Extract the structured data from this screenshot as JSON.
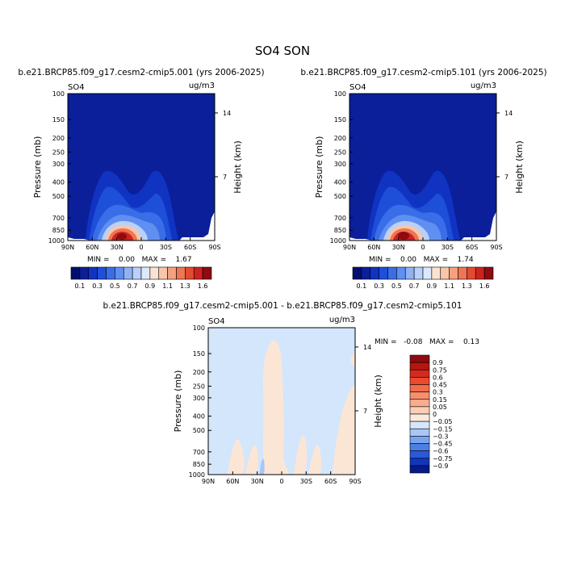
{
  "main_title": "SO4 SON",
  "colors": {
    "background_dark": "#0a1f99",
    "diff_background": "#d3e6fb",
    "diff_positive": "#fbe6d6",
    "diff_negative": "#a8c6f4"
  },
  "chart_data": [
    {
      "type": "heatmap",
      "title": "b.e21.BRCP85.f09_g17.cesm2-cmip5.001 (yrs 2006-2025)",
      "left_label": "SO4",
      "right_label": "ug/m3",
      "ylabel": "Pressure (mb)",
      "ylabel_right": "Height (km)",
      "y_ticks": [
        "100",
        "150",
        "200",
        "250",
        "300",
        "400",
        "500",
        "700",
        "850",
        "1000"
      ],
      "y_right_ticks": [
        "14",
        "7"
      ],
      "x_ticks": [
        "90N",
        "60N",
        "30N",
        "0",
        "30S",
        "60S",
        "90S"
      ],
      "stats_text": "MIN =    0.00   MAX =    1.67",
      "min": 0.0,
      "max": 1.67
    },
    {
      "type": "heatmap",
      "title": "b.e21.BRCP85.f09_g17.cesm2-cmip5.101 (yrs 2006-2025)",
      "left_label": "SO4",
      "right_label": "ug/m3",
      "ylabel": "Pressure (mb)",
      "ylabel_right": "Height (km)",
      "y_ticks": [
        "100",
        "150",
        "200",
        "250",
        "300",
        "400",
        "500",
        "700",
        "850",
        "1000"
      ],
      "y_right_ticks": [
        "14",
        "7"
      ],
      "x_ticks": [
        "90N",
        "60N",
        "30N",
        "0",
        "30S",
        "60S",
        "90S"
      ],
      "stats_text": "MIN =    0.00   MAX =    1.74",
      "min": 0.0,
      "max": 1.74
    },
    {
      "type": "heatmap",
      "title": "b.e21.BRCP85.f09_g17.cesm2-cmip5.001 - b.e21.BRCP85.f09_g17.cesm2-cmip5.101",
      "left_label": "SO4",
      "right_label": "ug/m3",
      "ylabel": "Pressure (mb)",
      "ylabel_right": "Height (km)",
      "y_ticks": [
        "100",
        "150",
        "200",
        "250",
        "300",
        "400",
        "500",
        "700",
        "850",
        "1000"
      ],
      "y_right_ticks": [
        "14",
        "7"
      ],
      "x_ticks": [
        "90N",
        "60N",
        "30N",
        "0",
        "30S",
        "60S",
        "90S"
      ],
      "stats_text": "MIN =   -0.08   MAX =    0.13",
      "min": -0.08,
      "max": 0.13
    }
  ],
  "colorbar_main": {
    "labels": [
      "0.1",
      "0.3",
      "0.5",
      "0.7",
      "0.9",
      "1.1",
      "1.3",
      "1.6"
    ],
    "colors": [
      "#00106e",
      "#0a1f99",
      "#1033c2",
      "#1e4fd9",
      "#3a6ee8",
      "#5f8ff0",
      "#8fb2f5",
      "#b9d0fa",
      "#dce9fc",
      "#fbe3d3",
      "#f8c6aa",
      "#f5a07e",
      "#ef7654",
      "#e34a32",
      "#cc231f",
      "#8e0b10"
    ]
  },
  "colorbar_diff": {
    "labels": [
      "0.9",
      "0.75",
      "0.6",
      "0.45",
      "0.3",
      "0.15",
      "0.05",
      "0",
      "−0.05",
      "−0.15",
      "−0.3",
      "−0.45",
      "−0.6",
      "−0.75",
      "−0.9"
    ],
    "colors": [
      "#8e0b10",
      "#b5160f",
      "#d42a1c",
      "#ea4a2e",
      "#f36c4a",
      "#f78e6c",
      "#f8ae8e",
      "#fbcfb4",
      "#fbe9dc",
      "#d7e7fb",
      "#a9c7f4",
      "#7aa4ee",
      "#4c7fe6",
      "#2a5ad8",
      "#1236b8",
      "#061a8a"
    ]
  }
}
